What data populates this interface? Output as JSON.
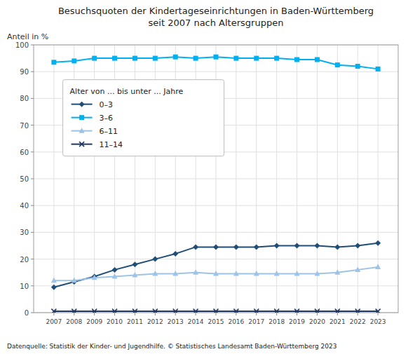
{
  "chart_data": {
    "type": "line",
    "title": "Besuchsquoten der Kindertageseinrichtungen in Baden-Württemberg\nseit 2007 nach Altersgruppen",
    "y_label": "Anteil in %",
    "legend_title": "Alter von ... bis unter ... Jahre",
    "annotations": [
      "Datenquelle: Statistik der Kinder- und Jugendhilfe.   © Statistisches Landesamt Baden-Württemberg 2023"
    ],
    "x": [
      2007,
      2008,
      2009,
      2010,
      2011,
      2012,
      2013,
      2014,
      2015,
      2016,
      2017,
      2018,
      2019,
      2020,
      2021,
      2022,
      2023
    ],
    "series": [
      {
        "name": "0–3",
        "color": "#1f4e79",
        "marker": "diamond",
        "values": [
          9.5,
          11.5,
          13.5,
          16.0,
          18.0,
          20.0,
          22.0,
          24.5,
          24.5,
          24.5,
          24.5,
          25.0,
          25.0,
          25.0,
          24.5,
          25.0,
          26.0
        ]
      },
      {
        "name": "3–6",
        "color": "#00b0f0",
        "marker": "square",
        "values": [
          93.5,
          94.0,
          95.0,
          95.0,
          95.0,
          95.0,
          95.5,
          95.0,
          95.5,
          95.0,
          95.0,
          95.0,
          94.5,
          94.5,
          92.5,
          92.0,
          91.0
        ]
      },
      {
        "name": "6–11",
        "color": "#9dc3e6",
        "marker": "triangle",
        "values": [
          12.0,
          12.0,
          13.0,
          13.5,
          14.0,
          14.5,
          14.5,
          15.0,
          14.5,
          14.5,
          14.5,
          14.5,
          14.5,
          14.5,
          15.0,
          16.0,
          17.0
        ]
      },
      {
        "name": "11–14",
        "color": "#1f3864",
        "marker": "x",
        "values": [
          0.5,
          0.5,
          0.5,
          0.5,
          0.5,
          0.5,
          0.5,
          0.5,
          0.5,
          0.5,
          0.5,
          0.5,
          0.5,
          0.5,
          0.5,
          0.5,
          0.5
        ]
      }
    ],
    "xlim": [
      2006,
      2024
    ],
    "xticks": [
      2007,
      2008,
      2009,
      2010,
      2011,
      2012,
      2013,
      2014,
      2015,
      2016,
      2017,
      2018,
      2019,
      2020,
      2021,
      2022,
      2023
    ],
    "ylim": [
      0,
      100
    ],
    "yticks": [
      0,
      10,
      20,
      30,
      40,
      50,
      60,
      70,
      80,
      90,
      100
    ],
    "grid": true,
    "legend": "upper left"
  }
}
